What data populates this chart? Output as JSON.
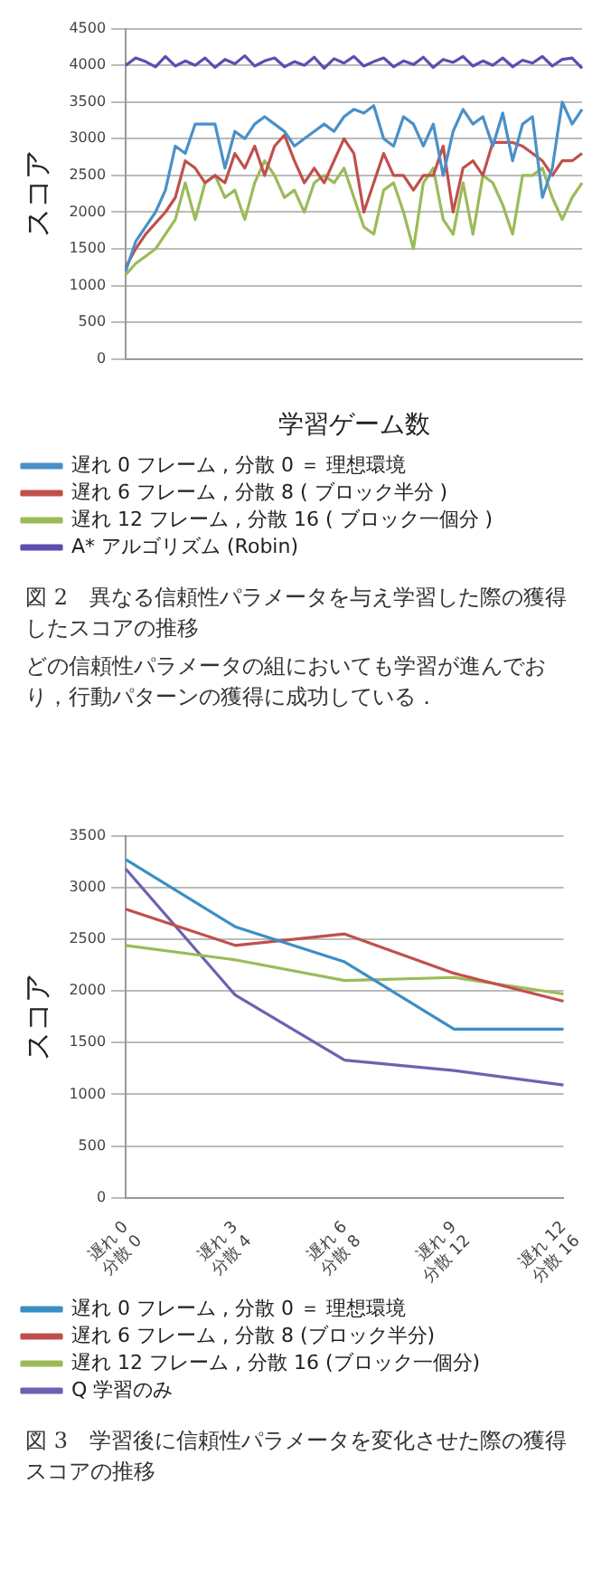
{
  "chart_data": [
    {
      "type": "line",
      "ylabel": "スコア",
      "xlabel": "学習ゲーム数",
      "categories": [
        null,
        null,
        null,
        null,
        null,
        null,
        null,
        null,
        null,
        null,
        null,
        null,
        null,
        null,
        null,
        null,
        null,
        null,
        null,
        null,
        null,
        null,
        null,
        null,
        null,
        null,
        null,
        null,
        null,
        null,
        null,
        null,
        null,
        null,
        null,
        null,
        null,
        null,
        null,
        null,
        null,
        null,
        null,
        null,
        null,
        null,
        null
      ],
      "ylim": [
        0,
        4500
      ],
      "yticks": [
        0,
        500,
        1000,
        1500,
        2000,
        2500,
        3000,
        3500,
        4000,
        4500
      ],
      "grid": "y",
      "legend": "bottom",
      "marker": "none",
      "line_style": "solid",
      "series": [
        {
          "name": "遅れ 0 フレーム , 分散 0 ＝ 理想環境",
          "color": "#4a90c8",
          "values": [
            1200,
            1600,
            1800,
            2000,
            2300,
            2900,
            2800,
            3200,
            3200,
            3200,
            2600,
            3100,
            3000,
            3200,
            3300,
            3200,
            3100,
            2900,
            3000,
            3100,
            3200,
            3100,
            3300,
            3400,
            3350,
            3450,
            3000,
            2900,
            3300,
            3200,
            2900,
            3200,
            2500,
            3100,
            3400,
            3200,
            3300,
            2900,
            3350,
            2700,
            3200,
            3300,
            2200,
            2600,
            3500,
            3200,
            3400
          ]
        },
        {
          "name": "遅れ 6 フレーム , 分散 8 ( ブロック半分 )",
          "color": "#c0504d",
          "values": [
            1250,
            1500,
            1700,
            1850,
            2000,
            2200,
            2700,
            2600,
            2400,
            2500,
            2400,
            2800,
            2600,
            2900,
            2500,
            2900,
            3050,
            2700,
            2400,
            2600,
            2400,
            2700,
            3000,
            2800,
            2000,
            2400,
            2800,
            2500,
            2500,
            2300,
            2500,
            2500,
            2900,
            2000,
            2600,
            2700,
            2500,
            2950,
            2950,
            2950,
            2900,
            2800,
            2700,
            2500,
            2700,
            2700,
            2800
          ]
        },
        {
          "name": "遅れ 12 フレーム , 分散 16 ( ブロック一個分 )",
          "color": "#9bbb59",
          "values": [
            1150,
            1300,
            1400,
            1500,
            1700,
            1900,
            2400,
            1900,
            2400,
            2500,
            2200,
            2300,
            1900,
            2400,
            2700,
            2500,
            2200,
            2300,
            2000,
            2400,
            2500,
            2400,
            2600,
            2200,
            1800,
            1700,
            2300,
            2400,
            2000,
            1500,
            2400,
            2600,
            1900,
            1700,
            2400,
            1700,
            2500,
            2400,
            2100,
            1700,
            2500,
            2500,
            2600,
            2200,
            1900,
            2200,
            2400
          ]
        },
        {
          "name": "A* アルゴリズム (Robin)",
          "color": "#5a4fb0",
          "values": [
            4000,
            4100,
            4050,
            3980,
            4120,
            3990,
            4060,
            4000,
            4100,
            3970,
            4080,
            4020,
            4130,
            3990,
            4060,
            4100,
            3980,
            4050,
            4000,
            4110,
            3960,
            4090,
            4030,
            4120,
            3990,
            4050,
            4100,
            3980,
            4060,
            4010,
            4110,
            3970,
            4080,
            4040,
            4120,
            3990,
            4060,
            4000,
            4100,
            3980,
            4070,
            4030,
            4120,
            3990,
            4080,
            4100,
            3960
          ]
        }
      ],
      "annotations": [
        "図 2　異なる信頼性パラメータを与え学習した際の獲得したスコアの推移",
        "どの信頼性パラメータの組においても学習が進んでおり，行動パターンの獲得に成功している．"
      ]
    },
    {
      "type": "line",
      "ylabel": "スコア",
      "categories": [
        "遅れ 0\n分散 0",
        "遅れ 3\n分散 4",
        "遅れ 6\n分散 8",
        "遅れ 9\n分散 12",
        "遅れ 12\n分散 16"
      ],
      "ylim": [
        0,
        3500
      ],
      "yticks": [
        0,
        500,
        1000,
        1500,
        2000,
        2500,
        3000,
        3500
      ],
      "grid": "y",
      "legend": "bottom",
      "marker": "none",
      "line_style": "solid",
      "series": [
        {
          "name": "遅れ 0 フレーム , 分散 0 ＝ 理想環境",
          "color": "#3b8fc4",
          "values": [
            3270,
            2620,
            2280,
            1630,
            1630
          ]
        },
        {
          "name": "遅れ 6 フレーム , 分散 8 (ブロック半分)",
          "color": "#c0504d",
          "values": [
            2790,
            2440,
            2550,
            2170,
            1900
          ]
        },
        {
          "name": "遅れ 12 フレーム , 分散 16 (ブロック一個分)",
          "color": "#9bbb59",
          "values": [
            2440,
            2300,
            2100,
            2130,
            1970
          ]
        },
        {
          "name": "Q 学習のみ",
          "color": "#7060b0",
          "values": [
            3180,
            1960,
            1330,
            1230,
            1090
          ]
        }
      ],
      "annotations": [
        "図 3　学習後に信頼性パラメータを変化させた際の獲得スコアの推移"
      ]
    }
  ]
}
